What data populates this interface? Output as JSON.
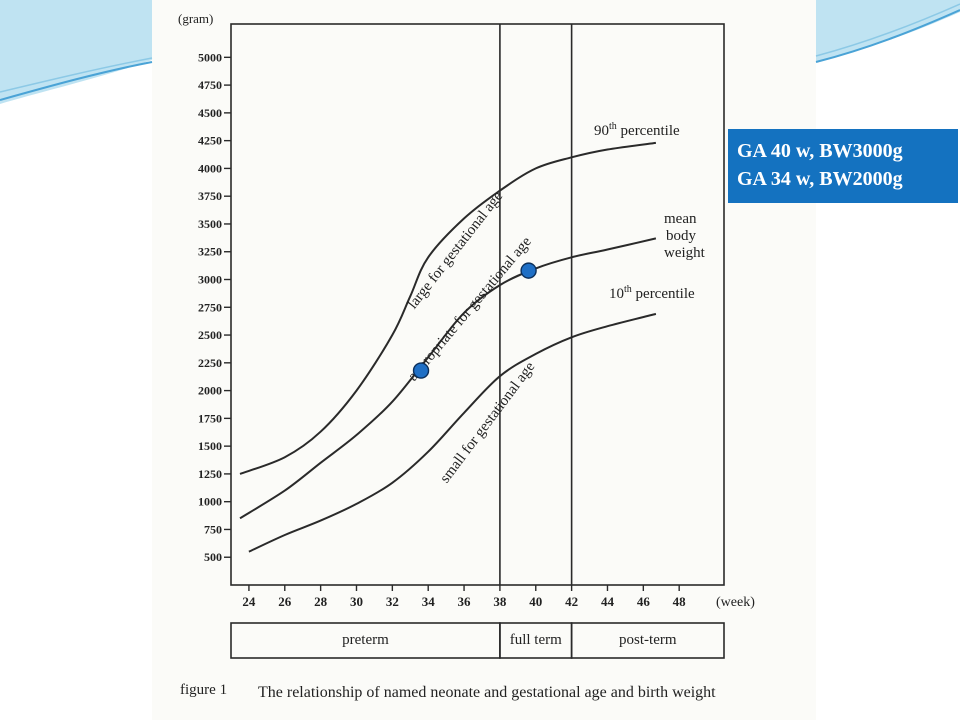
{
  "slide": {
    "callouts": [
      "GA 40 w, BW3000g",
      "GA 34 w, BW2000g"
    ],
    "caption_label": "figure 1",
    "caption_text": "The relationship of named neonate and gestational age and birth weight",
    "accent_color": "#1472c0"
  },
  "chart_data": {
    "type": "line",
    "ylabel": "(gram)",
    "xlabel": "(week)",
    "y_ticks": [
      500,
      750,
      1000,
      1250,
      1500,
      1750,
      2000,
      2250,
      2500,
      2750,
      3000,
      3250,
      3500,
      3750,
      4000,
      4250,
      4500,
      4750,
      5000
    ],
    "x_ticks": [
      24,
      26,
      28,
      30,
      32,
      34,
      36,
      38,
      40,
      42,
      44,
      46,
      48
    ],
    "ylim": [
      250,
      5300
    ],
    "xlim": [
      23,
      50.5
    ],
    "vertical_lines": [
      38,
      42
    ],
    "series": [
      {
        "name": "90th percentile",
        "label_main": "90",
        "label_sup": "th",
        "label_rest": " percentile",
        "x": [
          23.5,
          26,
          28,
          30,
          32,
          33,
          34,
          36,
          38,
          40,
          42,
          44,
          46.7
        ],
        "y": [
          1250,
          1400,
          1630,
          2000,
          2500,
          2850,
          3200,
          3550,
          3800,
          4000,
          4100,
          4170,
          4230
        ]
      },
      {
        "name": "mean body weight",
        "label_lines": [
          "mean",
          "body",
          "weight"
        ],
        "x": [
          23.5,
          26,
          28,
          30,
          32,
          34,
          36,
          38,
          40,
          42,
          44,
          46.7
        ],
        "y": [
          850,
          1100,
          1350,
          1600,
          1900,
          2300,
          2700,
          2950,
          3100,
          3200,
          3270,
          3370
        ]
      },
      {
        "name": "10th percentile",
        "label_main": "10",
        "label_sup": "th",
        "label_rest": " percentile",
        "x": [
          24,
          26,
          28,
          30,
          32,
          34,
          36,
          38,
          40,
          42,
          44,
          46.7
        ],
        "y": [
          550,
          700,
          830,
          980,
          1170,
          1450,
          1800,
          2130,
          2330,
          2480,
          2580,
          2690
        ]
      }
    ],
    "curve_labels": [
      {
        "text": "large for gestational age",
        "x": 35.7,
        "y": 3240,
        "angle": -52
      },
      {
        "text": "appropriate for gestational age",
        "x": 36.5,
        "y": 2710,
        "angle": -50
      },
      {
        "text": "small for gestational age",
        "x": 37.5,
        "y": 1690,
        "angle": -53
      }
    ],
    "points": [
      {
        "x": 39.6,
        "y": 3080,
        "color": "#1f6fc5"
      },
      {
        "x": 33.6,
        "y": 2180,
        "color": "#1f6fc5"
      }
    ],
    "categories_bar": [
      {
        "label": "preterm",
        "from": 23,
        "to": 38
      },
      {
        "label": "full term",
        "from": 38,
        "to": 42
      },
      {
        "label": "post-term",
        "from": 42,
        "to": 50.5
      }
    ]
  }
}
